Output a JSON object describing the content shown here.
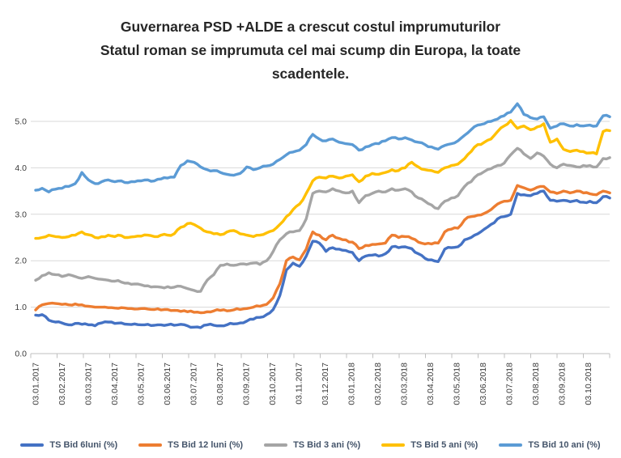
{
  "title": {
    "lines": [
      "Guvernarea PSD +ALDE a crescut costul imprumuturilor",
      "Statul roman se imprumuta cel mai scump din Europa, la toate",
      "scadentele."
    ]
  },
  "chart_data": {
    "type": "line",
    "title": "Guvernarea PSD +ALDE a crescut costul imprumuturilor. Statul roman se imprumuta cel mai scump din Europa, la toate scadentele.",
    "xlabel": "",
    "ylabel": "",
    "ylim": [
      0,
      5.5
    ],
    "grid": true,
    "legend_position": "bottom",
    "x_axis_note": "daily yields sampled every 0.25 month starting 03.01.2017",
    "x_sample_step_months": 0.25,
    "x_tick_labels": [
      "03.01.2017",
      "03.02.2017",
      "03.03.2017",
      "03.04.2017",
      "03.05.2017",
      "03.06.2017",
      "03.07.2017",
      "03.08.2017",
      "03.09.2017",
      "03.10.2017",
      "03.11.2017",
      "03.12.2017",
      "03.01.2018",
      "03.02.2018",
      "03.03.2018",
      "03.04.2018",
      "03.05.2018",
      "03.06.2018",
      "03.07.2018",
      "03.08.2018",
      "03.09.2018",
      "03.10.2018"
    ],
    "y_tick_labels": [
      "0.0",
      "1.0",
      "2.0",
      "3.0",
      "4.0",
      "5.0"
    ],
    "series": [
      {
        "name": "TS Bid 6luni (%)",
        "color": "#4472C4",
        "values": [
          0.83,
          0.84,
          0.72,
          0.68,
          0.66,
          0.62,
          0.65,
          0.63,
          0.62,
          0.6,
          0.66,
          0.68,
          0.65,
          0.66,
          0.63,
          0.64,
          0.62,
          0.63,
          0.61,
          0.62,
          0.62,
          0.61,
          0.63,
          0.6,
          0.57,
          0.56,
          0.62,
          0.61,
          0.6,
          0.62,
          0.64,
          0.66,
          0.7,
          0.74,
          0.78,
          0.84,
          0.95,
          1.25,
          1.8,
          1.95,
          1.88,
          2.1,
          2.42,
          2.38,
          2.2,
          2.28,
          2.25,
          2.22,
          2.18,
          2.0,
          2.1,
          2.12,
          2.1,
          2.15,
          2.3,
          2.28,
          2.3,
          2.26,
          2.15,
          2.05,
          2.02,
          1.98,
          2.25,
          2.28,
          2.3,
          2.45,
          2.5,
          2.58,
          2.68,
          2.78,
          2.9,
          2.95,
          3.0,
          3.45,
          3.42,
          3.4,
          3.45,
          3.5,
          3.3,
          3.28,
          3.3,
          3.27,
          3.3,
          3.26,
          3.28,
          3.25,
          3.38,
          3.35
        ]
      },
      {
        "name": "TS Bid 12 luni (%)",
        "color": "#ED7D31",
        "values": [
          0.94,
          1.05,
          1.08,
          1.08,
          1.06,
          1.05,
          1.07,
          1.05,
          1.02,
          1.0,
          1.0,
          0.99,
          0.98,
          0.99,
          0.97,
          0.96,
          0.97,
          0.96,
          0.95,
          0.94,
          0.95,
          0.93,
          0.91,
          0.9,
          0.89,
          0.88,
          0.9,
          0.92,
          0.93,
          0.92,
          0.94,
          0.95,
          0.97,
          1.0,
          1.02,
          1.06,
          1.2,
          1.5,
          2.0,
          2.08,
          2.02,
          2.25,
          2.62,
          2.55,
          2.45,
          2.55,
          2.48,
          2.45,
          2.4,
          2.26,
          2.33,
          2.35,
          2.36,
          2.38,
          2.55,
          2.5,
          2.52,
          2.48,
          2.4,
          2.36,
          2.36,
          2.38,
          2.62,
          2.68,
          2.7,
          2.88,
          2.95,
          2.98,
          3.02,
          3.1,
          3.22,
          3.28,
          3.3,
          3.62,
          3.57,
          3.52,
          3.58,
          3.6,
          3.48,
          3.45,
          3.5,
          3.46,
          3.5,
          3.46,
          3.44,
          3.42,
          3.5,
          3.46
        ]
      },
      {
        "name": "TS Bid 3 ani (%)",
        "color": "#A5A5A5",
        "values": [
          1.58,
          1.68,
          1.74,
          1.7,
          1.66,
          1.7,
          1.66,
          1.62,
          1.66,
          1.62,
          1.6,
          1.58,
          1.56,
          1.54,
          1.52,
          1.5,
          1.48,
          1.46,
          1.44,
          1.43,
          1.44,
          1.43,
          1.45,
          1.4,
          1.36,
          1.34,
          1.58,
          1.7,
          1.9,
          1.93,
          1.9,
          1.93,
          1.92,
          1.95,
          1.92,
          2.0,
          2.2,
          2.45,
          2.58,
          2.62,
          2.65,
          2.9,
          3.45,
          3.5,
          3.48,
          3.55,
          3.5,
          3.46,
          3.5,
          3.25,
          3.4,
          3.45,
          3.5,
          3.48,
          3.55,
          3.52,
          3.55,
          3.48,
          3.35,
          3.28,
          3.2,
          3.12,
          3.28,
          3.35,
          3.4,
          3.6,
          3.7,
          3.85,
          3.92,
          3.98,
          4.05,
          4.1,
          4.28,
          4.42,
          4.3,
          4.2,
          4.32,
          4.25,
          4.08,
          4.0,
          4.08,
          4.05,
          4.02,
          4.05,
          4.05,
          4.02,
          4.2,
          4.22
        ]
      },
      {
        "name": "TS Bid 5 ani (%)",
        "color": "#FFC000",
        "values": [
          2.48,
          2.5,
          2.55,
          2.52,
          2.5,
          2.52,
          2.55,
          2.62,
          2.56,
          2.5,
          2.52,
          2.55,
          2.52,
          2.54,
          2.5,
          2.52,
          2.53,
          2.55,
          2.52,
          2.55,
          2.55,
          2.58,
          2.72,
          2.8,
          2.78,
          2.7,
          2.62,
          2.58,
          2.56,
          2.62,
          2.65,
          2.58,
          2.55,
          2.52,
          2.55,
          2.6,
          2.65,
          2.78,
          2.95,
          3.1,
          3.22,
          3.45,
          3.72,
          3.8,
          3.78,
          3.82,
          3.78,
          3.82,
          3.85,
          3.7,
          3.82,
          3.88,
          3.86,
          3.9,
          3.96,
          3.94,
          4.0,
          4.12,
          4.02,
          3.96,
          3.94,
          3.9,
          4.0,
          4.05,
          4.08,
          4.2,
          4.35,
          4.5,
          4.55,
          4.62,
          4.78,
          4.9,
          5.02,
          4.85,
          4.9,
          4.82,
          4.88,
          4.95,
          4.55,
          4.62,
          4.4,
          4.35,
          4.38,
          4.35,
          4.32,
          4.3,
          4.78,
          4.8
        ]
      },
      {
        "name": "TS Bid 10 ani (%)",
        "color": "#5B9BD5",
        "values": [
          3.52,
          3.56,
          3.48,
          3.54,
          3.56,
          3.6,
          3.66,
          3.9,
          3.74,
          3.66,
          3.7,
          3.74,
          3.7,
          3.72,
          3.68,
          3.7,
          3.72,
          3.74,
          3.72,
          3.76,
          3.78,
          3.8,
          4.05,
          4.15,
          4.12,
          4.02,
          3.96,
          3.94,
          3.9,
          3.86,
          3.84,
          3.88,
          4.02,
          3.96,
          4.0,
          4.04,
          4.08,
          4.18,
          4.28,
          4.34,
          4.38,
          4.5,
          4.72,
          4.62,
          4.58,
          4.62,
          4.55,
          4.52,
          4.5,
          4.38,
          4.45,
          4.5,
          4.52,
          4.58,
          4.65,
          4.62,
          4.65,
          4.6,
          4.55,
          4.5,
          4.45,
          4.4,
          4.48,
          4.52,
          4.58,
          4.7,
          4.82,
          4.92,
          4.95,
          5.0,
          5.05,
          5.12,
          5.2,
          5.38,
          5.15,
          5.08,
          5.05,
          5.1,
          4.85,
          4.9,
          4.95,
          4.9,
          4.93,
          4.9,
          4.92,
          4.9,
          5.12,
          5.1
        ]
      }
    ]
  },
  "legend": {
    "text_color": "#44546A"
  },
  "style_colors": {
    "gridline": "#D9D9D9",
    "axis": "#BFBFBF",
    "tick_label": "#3B3B3B",
    "title_text": "#262626"
  }
}
